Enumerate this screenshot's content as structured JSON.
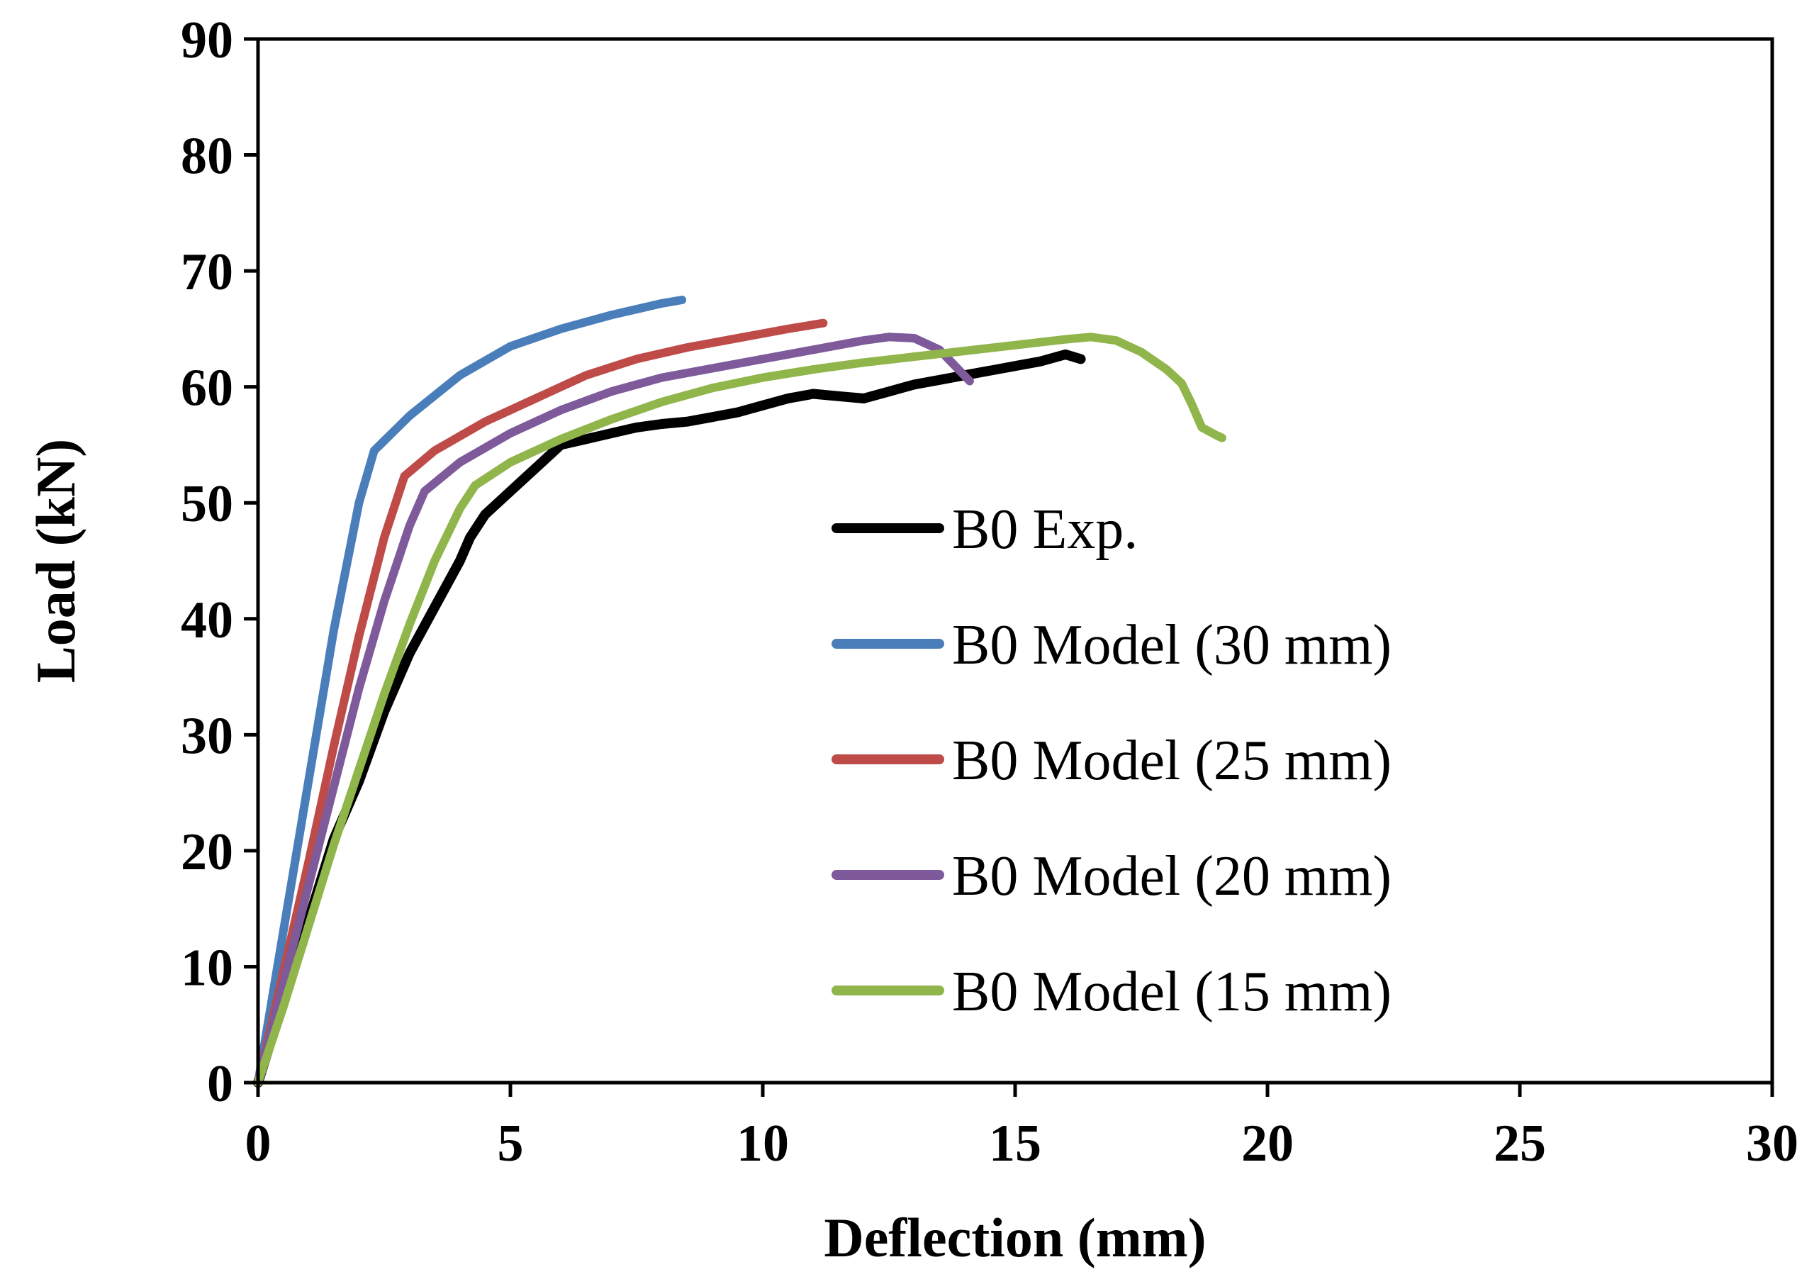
{
  "chart_data": {
    "type": "line",
    "xlabel": "Deflection (mm)",
    "ylabel": "Load (kN)",
    "xlim": [
      0,
      30
    ],
    "ylim": [
      0,
      90
    ],
    "xticks": [
      0,
      5,
      10,
      15,
      20,
      25,
      30
    ],
    "yticks": [
      0,
      10,
      20,
      30,
      40,
      50,
      60,
      70,
      80,
      90
    ],
    "grid": false,
    "legend_position": "center-right",
    "series": [
      {
        "name": "B0 Exp.",
        "color": "#000000",
        "points": [
          [
            0,
            0
          ],
          [
            0.5,
            7
          ],
          [
            1,
            14
          ],
          [
            1.5,
            21
          ],
          [
            2,
            26
          ],
          [
            2.5,
            32
          ],
          [
            3,
            37
          ],
          [
            3.5,
            41
          ],
          [
            4,
            45
          ],
          [
            4.2,
            47
          ],
          [
            4.5,
            49
          ],
          [
            5,
            51
          ],
          [
            5.5,
            53
          ],
          [
            6,
            55
          ],
          [
            6.5,
            55.5
          ],
          [
            7,
            56
          ],
          [
            7.5,
            56.5
          ],
          [
            8,
            56.8
          ],
          [
            8.5,
            57
          ],
          [
            9,
            57.4
          ],
          [
            9.5,
            57.8
          ],
          [
            10,
            58.4
          ],
          [
            10.5,
            59
          ],
          [
            11,
            59.4
          ],
          [
            11.5,
            59.2
          ],
          [
            12,
            59
          ],
          [
            12.5,
            59.6
          ],
          [
            13,
            60.2
          ],
          [
            13.5,
            60.6
          ],
          [
            14,
            61
          ],
          [
            14.5,
            61.4
          ],
          [
            15,
            61.8
          ],
          [
            15.5,
            62.2
          ],
          [
            16,
            62.8
          ],
          [
            16.3,
            62.4
          ]
        ]
      },
      {
        "name": "B0 Model (30 mm)",
        "color": "#4a7ebb",
        "points": [
          [
            0,
            0
          ],
          [
            0.5,
            13
          ],
          [
            1,
            26
          ],
          [
            1.5,
            39
          ],
          [
            2,
            50
          ],
          [
            2.3,
            54.5
          ],
          [
            3,
            57.5
          ],
          [
            4,
            61
          ],
          [
            5,
            63.5
          ],
          [
            6,
            65
          ],
          [
            7,
            66.2
          ],
          [
            8,
            67.2
          ],
          [
            8.4,
            67.5
          ]
        ]
      },
      {
        "name": "B0 Model (25 mm)",
        "color": "#be4b48",
        "points": [
          [
            0,
            0
          ],
          [
            0.5,
            9.5
          ],
          [
            1,
            19
          ],
          [
            1.5,
            29
          ],
          [
            2,
            38.5
          ],
          [
            2.5,
            47
          ],
          [
            2.9,
            52.3
          ],
          [
            3.5,
            54.5
          ],
          [
            4.5,
            57
          ],
          [
            5.5,
            59
          ],
          [
            6.5,
            61
          ],
          [
            7.5,
            62.4
          ],
          [
            8.5,
            63.4
          ],
          [
            9.5,
            64.2
          ],
          [
            10.5,
            65
          ],
          [
            11.2,
            65.5
          ]
        ]
      },
      {
        "name": "B0 Model (20 mm)",
        "color": "#7e5a9b",
        "points": [
          [
            0,
            0
          ],
          [
            0.5,
            8.5
          ],
          [
            1,
            17
          ],
          [
            1.5,
            25.5
          ],
          [
            2,
            34
          ],
          [
            2.5,
            41.5
          ],
          [
            3,
            48
          ],
          [
            3.3,
            51
          ],
          [
            4,
            53.5
          ],
          [
            5,
            56
          ],
          [
            6,
            58
          ],
          [
            7,
            59.6
          ],
          [
            8,
            60.8
          ],
          [
            9,
            61.6
          ],
          [
            10,
            62.4
          ],
          [
            11,
            63.2
          ],
          [
            12,
            64
          ],
          [
            12.5,
            64.3
          ],
          [
            13,
            64.2
          ],
          [
            13.5,
            63.2
          ],
          [
            14.1,
            60.5
          ]
        ]
      },
      {
        "name": "B0 Model (15 mm)",
        "color": "#8fb54b",
        "points": [
          [
            0,
            0
          ],
          [
            0.5,
            6.5
          ],
          [
            1,
            13.5
          ],
          [
            1.5,
            20.5
          ],
          [
            2,
            27
          ],
          [
            2.5,
            33.5
          ],
          [
            3,
            39.5
          ],
          [
            3.5,
            45
          ],
          [
            4,
            49.5
          ],
          [
            4.3,
            51.5
          ],
          [
            5,
            53.5
          ],
          [
            6,
            55.5
          ],
          [
            7,
            57.2
          ],
          [
            8,
            58.7
          ],
          [
            9,
            59.9
          ],
          [
            10,
            60.8
          ],
          [
            11,
            61.5
          ],
          [
            12,
            62.1
          ],
          [
            13,
            62.6
          ],
          [
            14,
            63.1
          ],
          [
            15,
            63.6
          ],
          [
            16,
            64.1
          ],
          [
            16.5,
            64.3
          ],
          [
            17,
            64
          ],
          [
            17.5,
            63
          ],
          [
            18,
            61.5
          ],
          [
            18.3,
            60.3
          ],
          [
            18.5,
            58.5
          ],
          [
            18.7,
            56.5
          ],
          [
            19,
            55.8
          ],
          [
            19.1,
            55.6
          ]
        ]
      }
    ]
  }
}
